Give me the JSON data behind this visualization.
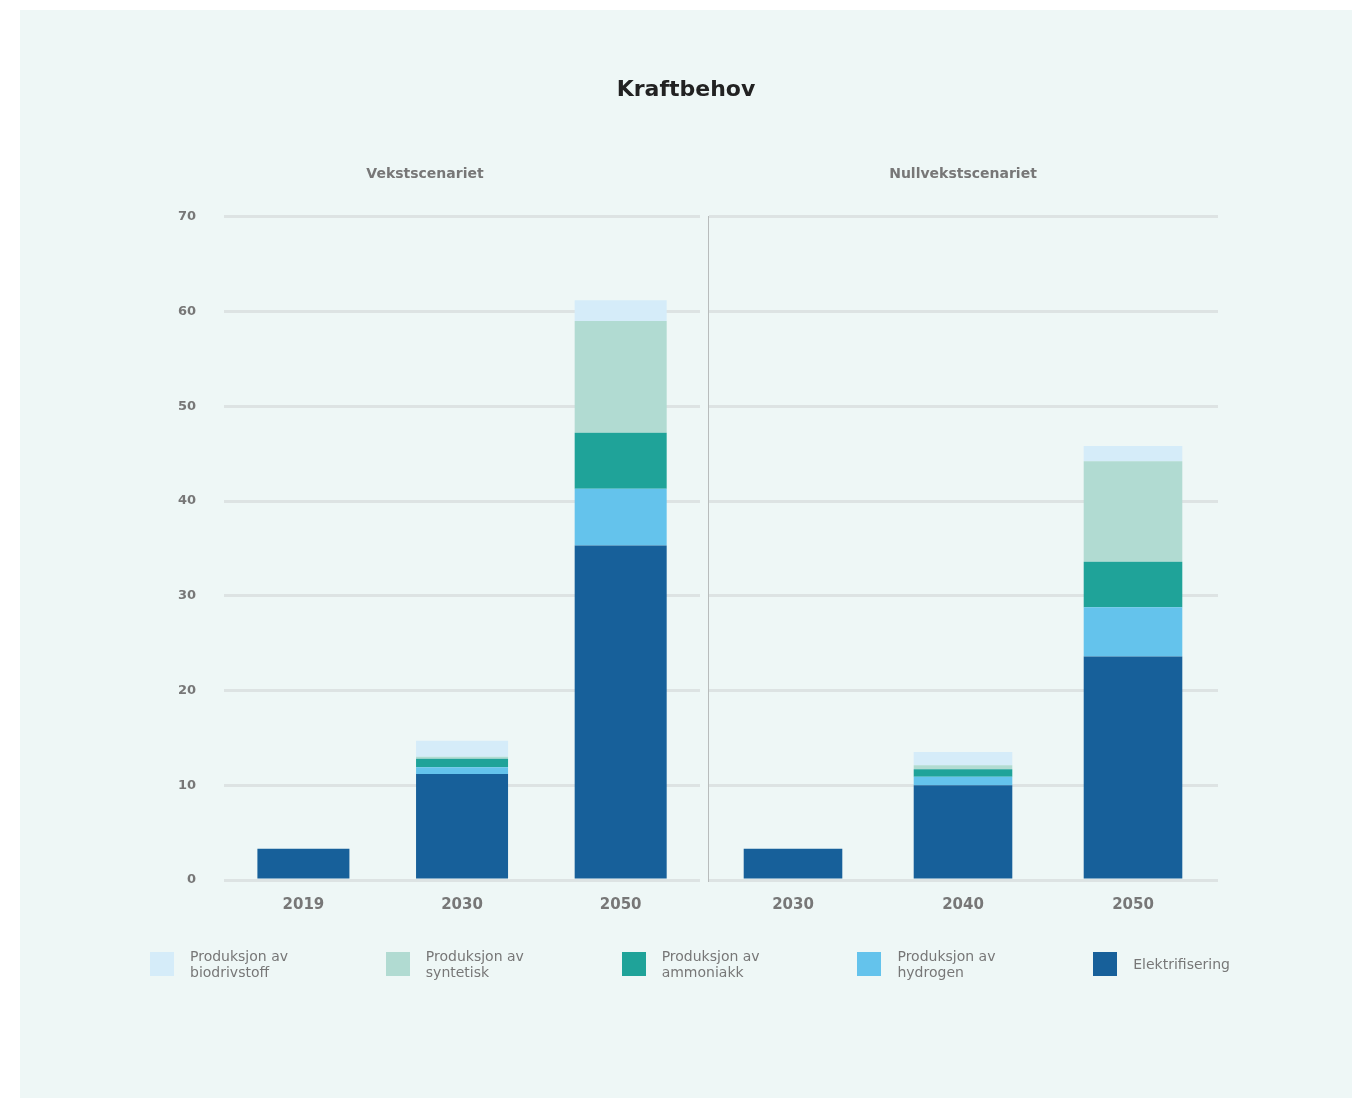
{
  "chart_data": [
    {
      "type": "bar",
      "title": "Kraftbehov",
      "subtitle": "Vekstscenariet",
      "categories": [
        "2019",
        "2030",
        "2050"
      ],
      "stacked": true,
      "ylim": [
        0,
        70
      ],
      "yticks": [
        0,
        10,
        20,
        30,
        40,
        50,
        60,
        70
      ],
      "grid": "y",
      "legend": "bottom",
      "series": [
        {
          "name": "Elektrifisering",
          "color": "#17609a",
          "values": [
            3.3,
            11.2,
            35.3
          ]
        },
        {
          "name": "Produksjon av hydrogen",
          "color": "#64c3ec",
          "values": [
            0,
            0.7,
            6.0
          ]
        },
        {
          "name": "Produksjon av ammoniakk",
          "color": "#1fa399",
          "values": [
            0,
            0.9,
            5.9
          ]
        },
        {
          "name": "Produksjon av syntetisk",
          "color": "#b1dbd2",
          "values": [
            0,
            0.2,
            11.8
          ]
        },
        {
          "name": "Produksjon av biodrivstoff",
          "color": "#d5ecf9",
          "values": [
            0,
            1.7,
            2.2
          ]
        }
      ]
    },
    {
      "type": "bar",
      "subtitle": "Nullvekstscenariet",
      "categories": [
        "2030",
        "2040",
        "2050"
      ],
      "stacked": true,
      "ylim": [
        0,
        70
      ],
      "yticks": [
        0,
        10,
        20,
        30,
        40,
        50,
        60,
        70
      ],
      "grid": "y",
      "tick_labels": "x",
      "series": [
        {
          "color": "#17609a",
          "values": [
            3.3,
            10.0,
            23.6
          ]
        },
        {
          "color": "#64c3ec",
          "values": [
            0,
            0.9,
            5.2
          ]
        },
        {
          "color": "#1fa399",
          "values": [
            0,
            0.8,
            4.8
          ]
        },
        {
          "color": "#b1dbd2",
          "values": [
            0,
            0.4,
            10.6
          ]
        },
        {
          "color": "#d5ecf9",
          "values": [
            0,
            1.4,
            1.6
          ]
        }
      ]
    }
  ]
}
